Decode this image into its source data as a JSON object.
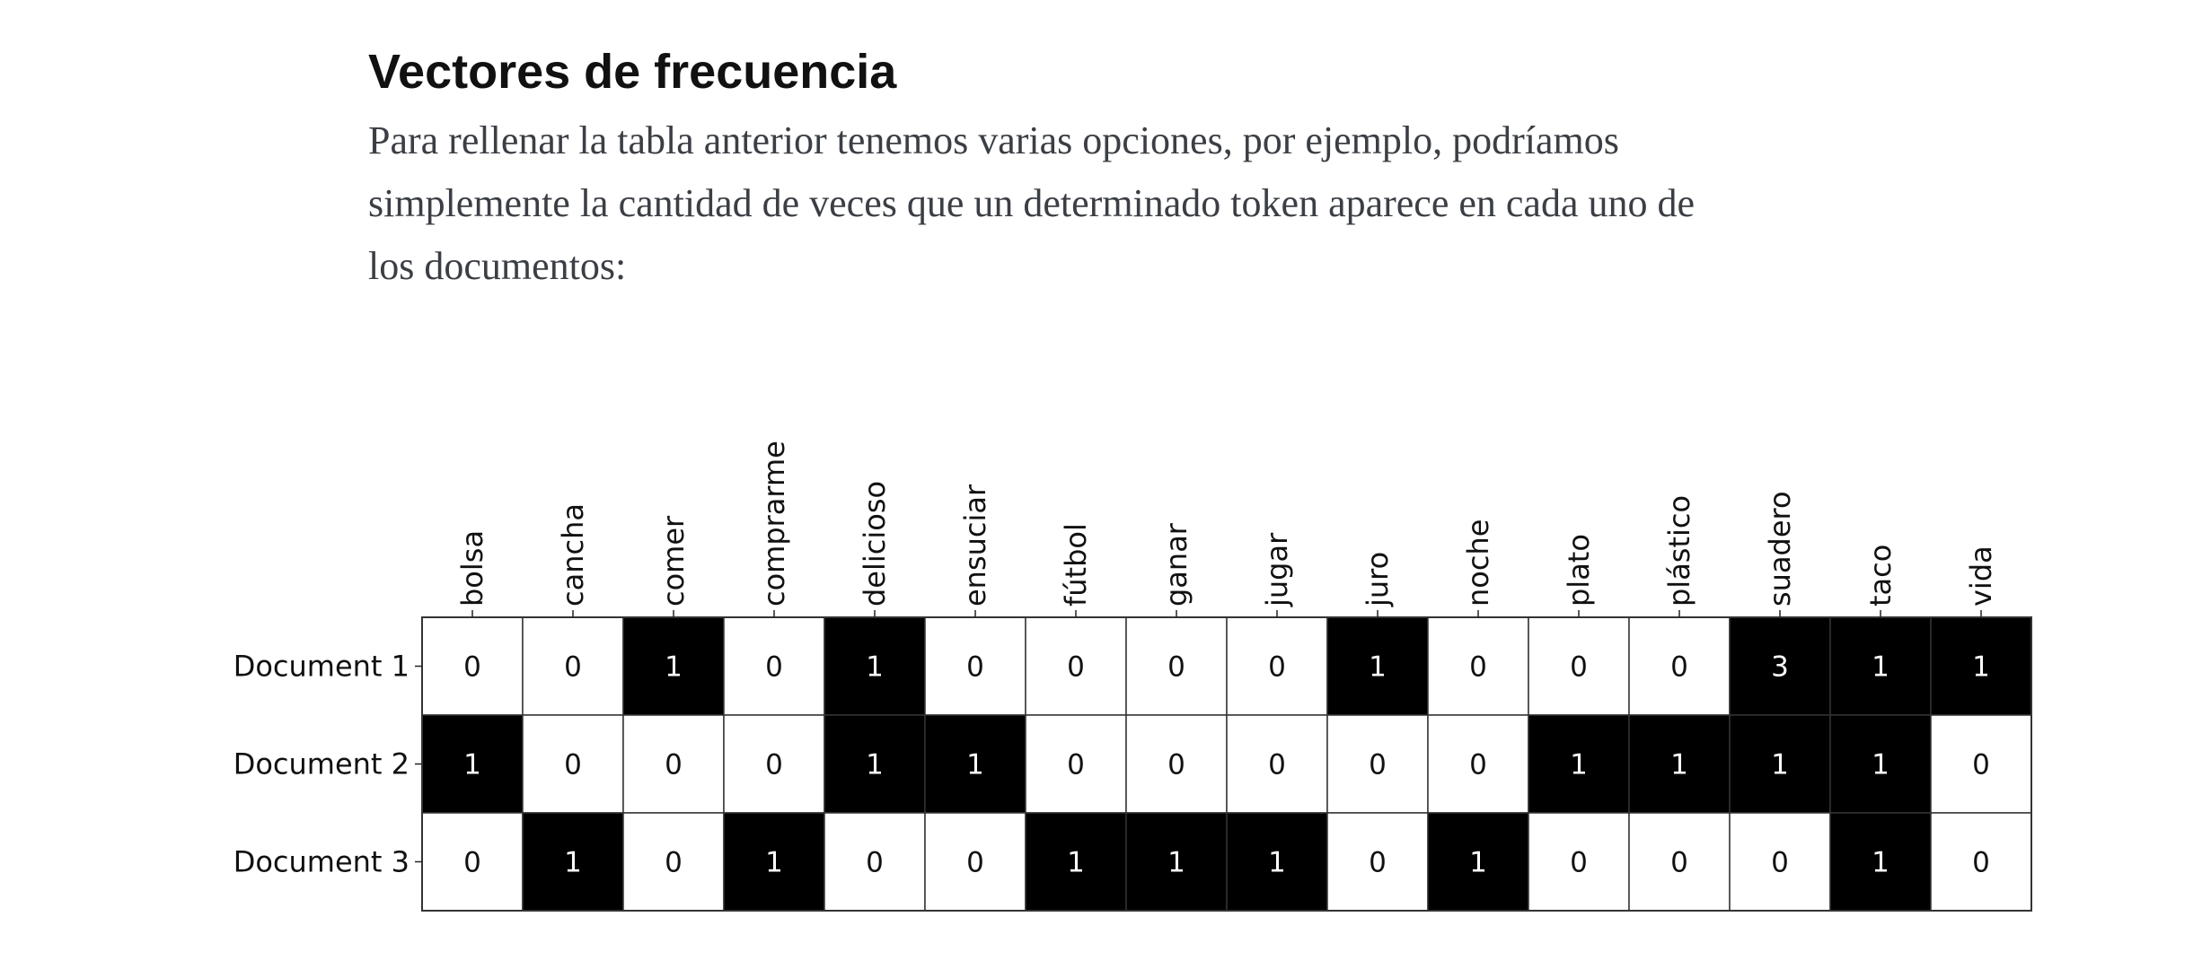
{
  "article": {
    "title": "Vectores de frecuencia",
    "paragraph_lines": [
      "Para rellenar la tabla anterior tenemos varias opciones, por ejemplo, podríamos",
      "simplemente la cantidad de veces que un determinado token aparece en cada uno de",
      "los documentos:"
    ]
  },
  "chart_data": {
    "type": "heatmap",
    "title": "",
    "xlabel": "",
    "ylabel": "",
    "x_tick_position": "top",
    "x_tick_rotation": "vertical",
    "colors": {
      "zero": "#ffffff",
      "nonzero": "#000000",
      "text_on_zero": "#111111",
      "text_on_nonzero": "#ffffff",
      "grid": "#333333"
    },
    "columns": [
      "bolsa",
      "cancha",
      "comer",
      "comprarme",
      "delicioso",
      "ensuciar",
      "fútbol",
      "ganar",
      "jugar",
      "juro",
      "noche",
      "plato",
      "plástico",
      "suadero",
      "taco",
      "vida"
    ],
    "rows": [
      "Document 1",
      "Document 2",
      "Document 3"
    ],
    "values": [
      [
        0,
        0,
        1,
        0,
        1,
        0,
        0,
        0,
        0,
        1,
        0,
        0,
        0,
        3,
        1,
        1
      ],
      [
        1,
        0,
        0,
        0,
        1,
        1,
        0,
        0,
        0,
        0,
        0,
        1,
        1,
        1,
        1,
        0
      ],
      [
        0,
        1,
        0,
        1,
        0,
        0,
        1,
        1,
        1,
        0,
        1,
        0,
        0,
        0,
        1,
        0
      ]
    ]
  }
}
